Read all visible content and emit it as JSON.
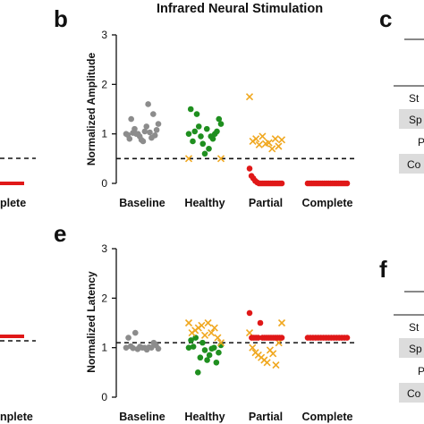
{
  "figure_title": "Infrared Neural Stimulation",
  "panel_labels": {
    "b": "b",
    "c": "c",
    "e": "e",
    "f": "f"
  },
  "left_fragments": {
    "top_category": "plete",
    "bottom_category": "nplete"
  },
  "table_fragments": {
    "c": [
      "St",
      "Sp",
      "P",
      "Co"
    ],
    "f": [
      "St",
      "Sp",
      "P",
      "Co"
    ]
  },
  "colors": {
    "baseline": "#8c8c8c",
    "healthy": "#1f8f1f",
    "partial_x": "#f0a820",
    "partial_dot": "#e01818",
    "complete": "#e01818",
    "table_shade": "#dcdcdc"
  },
  "chart_data": [
    {
      "type": "scatter",
      "panel": "b",
      "ylabel": "Normalized Amplitude",
      "ylim": [
        0,
        3
      ],
      "yticks": [
        "0",
        "1",
        "2",
        "3"
      ],
      "categories": [
        "Baseline",
        "Healthy",
        "Partial",
        "Complete"
      ],
      "reference_line": 0.5,
      "series": [
        {
          "category": "Baseline",
          "marker": "dot",
          "color_key": "baseline",
          "values": [
            1.0,
            0.97,
            1.03,
            1.05,
            0.95,
            1.1,
            0.9,
            1.2,
            1.4,
            1.6,
            0.85,
            1.0,
            1.02,
            0.98,
            1.08,
            0.92,
            1.15,
            0.88,
            1.0,
            1.3
          ]
        },
        {
          "category": "Healthy",
          "marker": "dot",
          "color_key": "healthy",
          "values": [
            1.0,
            1.05,
            0.95,
            1.1,
            0.9,
            1.3,
            1.5,
            1.4,
            0.8,
            0.7,
            1.0,
            1.2,
            0.85,
            1.15,
            0.6,
            0.95,
            1.05
          ]
        },
        {
          "category": "Healthy",
          "marker": "x",
          "color_key": "partial_x",
          "values": [
            0.5,
            0.5
          ]
        },
        {
          "category": "Partial",
          "marker": "x",
          "color_key": "partial_x",
          "values": [
            1.75,
            0.95,
            0.9,
            0.85,
            0.8,
            0.75,
            0.9,
            0.82,
            0.88,
            0.78,
            0.7
          ]
        },
        {
          "category": "Partial",
          "marker": "dot",
          "color_key": "partial_dot",
          "values": [
            0.3,
            0.15,
            0.1,
            0.05,
            0.02,
            0.0,
            0.0,
            0.0,
            0.0,
            0.0,
            0.0,
            0.0,
            0.0,
            0.0,
            0.0,
            0.0,
            0.0,
            0.0
          ]
        },
        {
          "category": "Complete",
          "marker": "dot",
          "color_key": "complete",
          "values": [
            0,
            0,
            0,
            0,
            0,
            0,
            0,
            0,
            0,
            0,
            0,
            0,
            0,
            0,
            0,
            0,
            0,
            0,
            0,
            0
          ]
        }
      ]
    },
    {
      "type": "scatter",
      "panel": "e",
      "ylabel": "Normalized Latency",
      "ylim": [
        0,
        3
      ],
      "yticks": [
        "0",
        "1",
        "2",
        "3"
      ],
      "categories": [
        "Baseline",
        "Healthy",
        "Partial",
        "Complete"
      ],
      "reference_line": 1.1,
      "series": [
        {
          "category": "Baseline",
          "marker": "dot",
          "color_key": "baseline",
          "values": [
            1.0,
            1.0,
            0.98,
            1.02,
            1.05,
            0.97,
            1.1,
            1.3,
            1.0,
            0.99,
            1.01,
            1.03,
            0.96,
            1.2,
            1.0
          ]
        },
        {
          "category": "Healthy",
          "marker": "dot",
          "color_key": "healthy",
          "values": [
            1.0,
            0.95,
            1.05,
            1.1,
            0.9,
            0.8,
            0.7,
            0.5,
            1.0,
            1.2,
            0.98,
            1.02,
            0.85,
            1.15,
            0.75
          ]
        },
        {
          "category": "Healthy",
          "marker": "x",
          "color_key": "partial_x",
          "values": [
            1.5,
            1.45,
            1.4,
            1.3,
            1.25,
            1.2,
            1.35,
            1.5,
            1.1,
            1.4,
            1.3
          ]
        },
        {
          "category": "Partial",
          "marker": "x",
          "color_key": "partial_x",
          "values": [
            1.3,
            1.0,
            0.9,
            0.85,
            0.8,
            0.75,
            0.7,
            0.95,
            0.88,
            0.65,
            1.1,
            1.5
          ]
        },
        {
          "category": "Partial",
          "marker": "dot",
          "color_key": "partial_dot",
          "values": [
            1.7,
            1.5,
            1.2,
            1.2,
            1.2,
            1.2,
            1.2,
            1.2,
            1.2,
            1.2,
            1.2,
            1.2,
            1.2,
            1.2,
            1.2,
            1.2
          ]
        },
        {
          "category": "Complete",
          "marker": "dot",
          "color_key": "complete",
          "values": [
            1.2,
            1.2,
            1.2,
            1.2,
            1.2,
            1.2,
            1.2,
            1.2,
            1.2,
            1.2,
            1.2,
            1.2,
            1.2,
            1.2,
            1.2,
            1.2
          ]
        }
      ]
    }
  ]
}
